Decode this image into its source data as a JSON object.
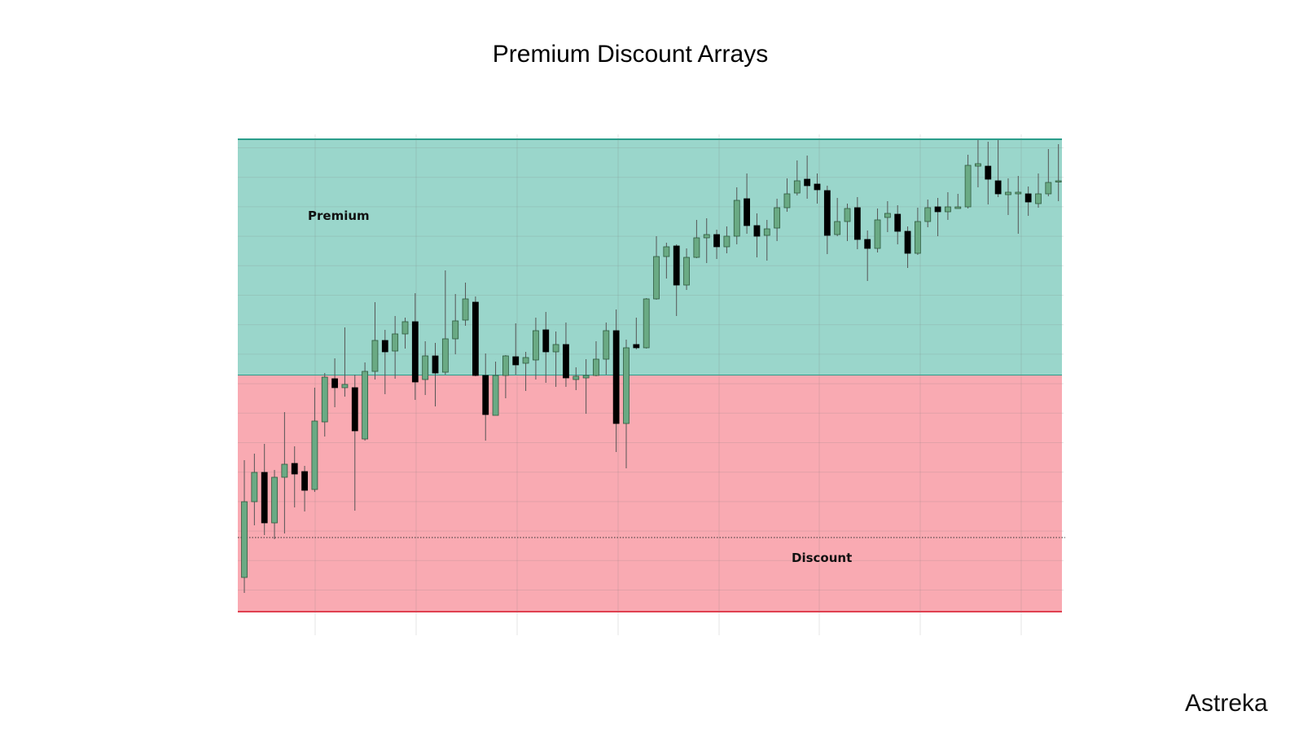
{
  "chart_data": {
    "type": "candlestick",
    "title": "Premium Discount Arrays",
    "watermark": "Astreka",
    "ylim": [
      -9,
      586
    ],
    "zones": [
      {
        "label": "Premium",
        "from": 290,
        "to": 580,
        "color": "#9ad6cb",
        "edge_color": "#2a9d8a"
      },
      {
        "label": "Discount",
        "from": 0,
        "to": 290,
        "color": "#f9aab2",
        "edge_color": "#e04050"
      }
    ],
    "reference_line": 91,
    "up_color": "#6aaa84",
    "down_color": "#000000",
    "open": [
      42,
      135,
      171,
      109,
      165,
      182,
      172,
      150,
      233,
      286,
      275,
      275,
      212,
      295,
      333,
      320,
      341,
      356,
      285,
      314,
      294,
      335,
      358,
      380,
      290,
      241,
      290,
      313,
      305,
      309,
      346,
      319,
      328,
      285,
      287,
      290,
      310,
      345,
      231,
      328,
      324,
      384,
      436,
      449,
      401,
      435,
      459,
      463,
      448,
      461,
      507,
      474,
      462,
      471,
      496,
      514,
      531,
      525,
      517,
      463,
      479,
      496,
      457,
      446,
      484,
      488,
      467,
      440,
      479,
      497,
      491,
      495,
      497,
      547,
      547,
      529,
      512,
      513,
      513,
      501,
      513,
      528
    ],
    "high": [
      186,
      194,
      206,
      174,
      245,
      203,
      179,
      275,
      293,
      311,
      349,
      291,
      306,
      380,
      346,
      363,
      361,
      391,
      332,
      330,
      419,
      390,
      404,
      387,
      317,
      307,
      315,
      354,
      319,
      361,
      368,
      344,
      355,
      300,
      310,
      332,
      355,
      371,
      334,
      361,
      385,
      461,
      453,
      451,
      446,
      481,
      483,
      469,
      473,
      521,
      538,
      489,
      481,
      507,
      532,
      554,
      560,
      538,
      523,
      508,
      501,
      509,
      468,
      495,
      504,
      499,
      473,
      496,
      506,
      508,
      515,
      513,
      561,
      579,
      577,
      579,
      532,
      535,
      522,
      538,
      568,
      574
    ],
    "low": [
      23,
      106,
      94,
      89,
      96,
      128,
      123,
      147,
      215,
      251,
      264,
      124,
      210,
      285,
      267,
      286,
      323,
      260,
      266,
      252,
      291,
      316,
      351,
      289,
      210,
      241,
      262,
      291,
      271,
      285,
      281,
      276,
      276,
      272,
      243,
      289,
      291,
      196,
      176,
      322,
      323,
      383,
      409,
      363,
      395,
      434,
      428,
      433,
      440,
      451,
      464,
      435,
      431,
      455,
      491,
      511,
      507,
      501,
      439,
      461,
      455,
      445,
      406,
      441,
      466,
      451,
      422,
      438,
      472,
      461,
      481,
      495,
      495,
      521,
      500,
      509,
      487,
      464,
      486,
      496,
      510,
      504
    ],
    "close": [
      135,
      171,
      109,
      165,
      181,
      169,
      149,
      234,
      288,
      275,
      279,
      222,
      295,
      333,
      319,
      341,
      356,
      282,
      314,
      293,
      335,
      357,
      384,
      290,
      242,
      290,
      314,
      303,
      312,
      345,
      319,
      328,
      287,
      289,
      290,
      310,
      345,
      231,
      324,
      324,
      384,
      436,
      448,
      401,
      435,
      459,
      463,
      448,
      461,
      505,
      474,
      461,
      470,
      496,
      513,
      529,
      523,
      518,
      462,
      479,
      495,
      457,
      446,
      481,
      489,
      467,
      440,
      479,
      496,
      491,
      497,
      497,
      548,
      550,
      531,
      513,
      515,
      515,
      503,
      513,
      527,
      529
    ]
  }
}
